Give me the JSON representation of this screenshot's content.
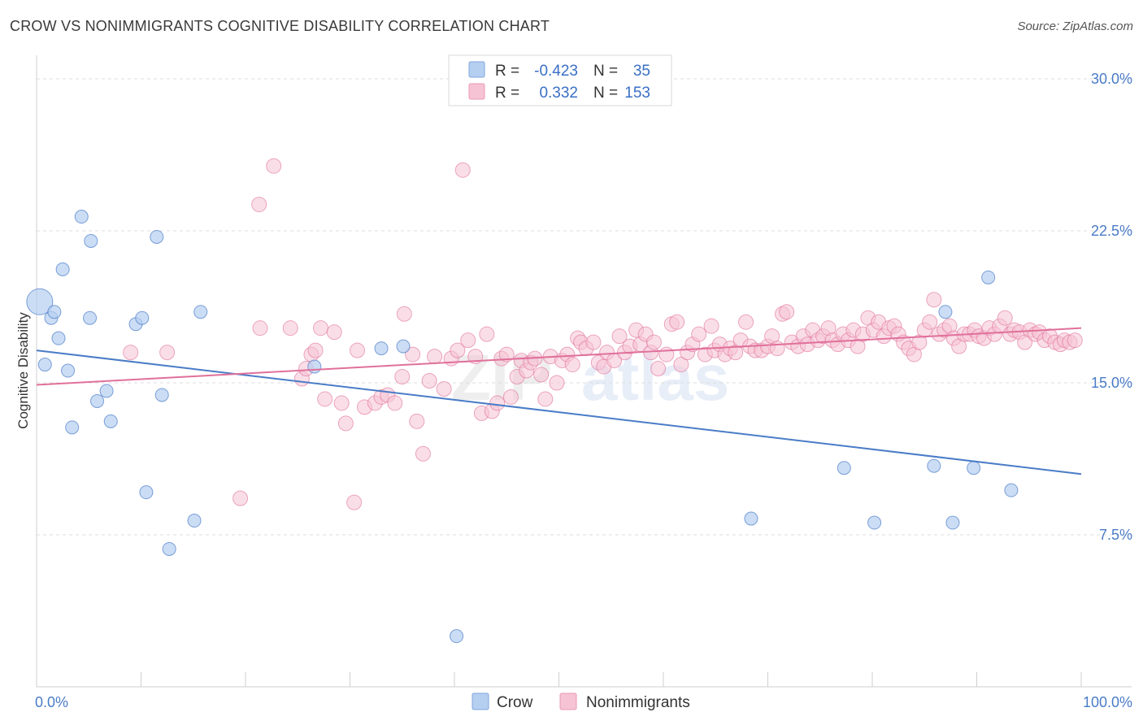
{
  "title": "CROW VS NONIMMIGRANTS COGNITIVE DISABILITY CORRELATION CHART",
  "source": "Source: ZipAtlas.com",
  "watermark": {
    "zip": "ZIP",
    "atlas": "atlas"
  },
  "legend_top": [
    {
      "r_label": "R =",
      "r_value": "-0.423",
      "n_label": "N =",
      "n_value": "35"
    },
    {
      "r_label": "R =",
      "r_value": "0.332",
      "n_label": "N =",
      "n_value": "153"
    }
  ],
  "chart_data": {
    "type": "scatter",
    "title": "CROW VS NONIMMIGRANTS COGNITIVE DISABILITY CORRELATION CHART",
    "xlabel": "",
    "ylabel": "Cognitive Disability",
    "xlim": [
      0,
      100
    ],
    "ylim": [
      0,
      30
    ],
    "x_tick_labels": [
      "0.0%",
      "100.0%"
    ],
    "y_ticks": [
      7.5,
      15.0,
      22.5,
      30.0
    ],
    "y_tick_labels": [
      "7.5%",
      "15.0%",
      "22.5%",
      "30.0%"
    ],
    "grid": true,
    "colors": {
      "crow": "#4a7cc7",
      "crow_fill": "#b5cff1",
      "nonimmigrants": "#e0709a",
      "nonimmigrants_fill": "#f6c3d4"
    },
    "series": [
      {
        "name": "Crow",
        "R": -0.423,
        "N": 35,
        "trend": {
          "x": [
            0,
            100
          ],
          "y": [
            16.6,
            10.5
          ]
        },
        "points": [
          [
            0.3,
            19.0
          ],
          [
            0.8,
            15.9
          ],
          [
            1.4,
            18.2
          ],
          [
            1.7,
            18.5
          ],
          [
            2.1,
            17.2
          ],
          [
            2.5,
            20.6
          ],
          [
            3.0,
            15.6
          ],
          [
            3.4,
            12.8
          ],
          [
            4.3,
            23.2
          ],
          [
            5.1,
            18.2
          ],
          [
            5.2,
            22.0
          ],
          [
            5.8,
            14.1
          ],
          [
            6.7,
            14.6
          ],
          [
            7.1,
            13.1
          ],
          [
            9.5,
            17.9
          ],
          [
            10.1,
            18.2
          ],
          [
            10.5,
            9.6
          ],
          [
            11.5,
            22.2
          ],
          [
            12.0,
            14.4
          ],
          [
            12.7,
            6.8
          ],
          [
            15.1,
            8.2
          ],
          [
            15.7,
            18.5
          ],
          [
            26.6,
            15.8
          ],
          [
            33.0,
            16.7
          ],
          [
            35.1,
            16.8
          ],
          [
            40.2,
            2.5
          ],
          [
            68.4,
            8.3
          ],
          [
            77.3,
            10.8
          ],
          [
            80.2,
            8.1
          ],
          [
            85.9,
            10.9
          ],
          [
            87.0,
            18.5
          ],
          [
            87.7,
            8.1
          ],
          [
            89.7,
            10.8
          ],
          [
            91.1,
            20.2
          ],
          [
            93.3,
            9.7
          ]
        ]
      },
      {
        "name": "Nonimmigrants",
        "R": 0.332,
        "N": 153,
        "trend": {
          "x": [
            0,
            100
          ],
          "y": [
            14.9,
            17.7
          ]
        },
        "points": [
          [
            9.0,
            16.5
          ],
          [
            12.5,
            16.5
          ],
          [
            19.5,
            9.3
          ],
          [
            21.3,
            23.8
          ],
          [
            21.4,
            17.7
          ],
          [
            22.7,
            25.7
          ],
          [
            24.3,
            17.7
          ],
          [
            25.4,
            15.2
          ],
          [
            25.8,
            15.7
          ],
          [
            26.3,
            16.4
          ],
          [
            26.7,
            16.6
          ],
          [
            27.2,
            17.7
          ],
          [
            27.6,
            14.2
          ],
          [
            28.5,
            17.5
          ],
          [
            29.2,
            14.0
          ],
          [
            29.6,
            13.0
          ],
          [
            30.4,
            9.1
          ],
          [
            30.7,
            16.6
          ],
          [
            31.4,
            13.8
          ],
          [
            32.4,
            14.0
          ],
          [
            33.0,
            14.3
          ],
          [
            33.6,
            14.4
          ],
          [
            34.3,
            14.0
          ],
          [
            35.0,
            15.3
          ],
          [
            35.2,
            18.4
          ],
          [
            36.0,
            16.4
          ],
          [
            36.4,
            13.1
          ],
          [
            37.0,
            11.5
          ],
          [
            37.6,
            15.1
          ],
          [
            38.1,
            16.3
          ],
          [
            39.0,
            14.7
          ],
          [
            39.7,
            16.2
          ],
          [
            40.3,
            16.6
          ],
          [
            40.8,
            25.5
          ],
          [
            41.3,
            17.1
          ],
          [
            42.0,
            16.3
          ],
          [
            42.6,
            13.5
          ],
          [
            43.1,
            17.4
          ],
          [
            43.6,
            13.6
          ],
          [
            44.1,
            14.0
          ],
          [
            44.5,
            16.2
          ],
          [
            45.0,
            16.4
          ],
          [
            45.4,
            14.3
          ],
          [
            46.0,
            15.3
          ],
          [
            46.4,
            16.1
          ],
          [
            46.9,
            15.6
          ],
          [
            47.3,
            16.0
          ],
          [
            47.7,
            16.2
          ],
          [
            48.3,
            15.4
          ],
          [
            48.7,
            14.2
          ],
          [
            49.2,
            16.3
          ],
          [
            49.8,
            15.0
          ],
          [
            50.3,
            16.1
          ],
          [
            50.8,
            16.4
          ],
          [
            51.3,
            15.9
          ],
          [
            51.8,
            17.2
          ],
          [
            52.1,
            17.0
          ],
          [
            52.6,
            16.7
          ],
          [
            53.3,
            17.0
          ],
          [
            53.8,
            16.0
          ],
          [
            54.3,
            15.8
          ],
          [
            54.6,
            16.5
          ],
          [
            55.3,
            16.1
          ],
          [
            55.8,
            17.3
          ],
          [
            56.3,
            16.5
          ],
          [
            56.8,
            16.8
          ],
          [
            57.4,
            17.6
          ],
          [
            57.8,
            16.9
          ],
          [
            58.3,
            17.4
          ],
          [
            58.8,
            16.5
          ],
          [
            59.1,
            17.0
          ],
          [
            59.5,
            15.7
          ],
          [
            60.3,
            16.4
          ],
          [
            60.8,
            17.9
          ],
          [
            61.3,
            18.0
          ],
          [
            61.7,
            15.9
          ],
          [
            62.3,
            16.5
          ],
          [
            62.8,
            16.9
          ],
          [
            63.4,
            17.4
          ],
          [
            64.0,
            16.4
          ],
          [
            64.6,
            17.8
          ],
          [
            64.9,
            16.6
          ],
          [
            65.4,
            16.9
          ],
          [
            65.9,
            16.4
          ],
          [
            66.4,
            16.7
          ],
          [
            66.9,
            16.5
          ],
          [
            67.4,
            17.1
          ],
          [
            67.9,
            18.0
          ],
          [
            68.3,
            16.8
          ],
          [
            68.8,
            16.6
          ],
          [
            69.4,
            16.6
          ],
          [
            70.0,
            16.8
          ],
          [
            70.4,
            17.3
          ],
          [
            70.9,
            16.7
          ],
          [
            71.4,
            18.4
          ],
          [
            71.8,
            18.5
          ],
          [
            72.3,
            17.0
          ],
          [
            72.9,
            16.8
          ],
          [
            73.4,
            17.3
          ],
          [
            73.8,
            16.9
          ],
          [
            74.3,
            17.6
          ],
          [
            74.8,
            17.1
          ],
          [
            75.3,
            17.3
          ],
          [
            75.8,
            17.7
          ],
          [
            76.2,
            17.1
          ],
          [
            76.7,
            16.9
          ],
          [
            77.2,
            17.4
          ],
          [
            77.7,
            17.1
          ],
          [
            78.2,
            17.6
          ],
          [
            78.6,
            16.8
          ],
          [
            79.1,
            17.4
          ],
          [
            79.6,
            18.2
          ],
          [
            80.1,
            17.6
          ],
          [
            80.6,
            18.0
          ],
          [
            81.1,
            17.3
          ],
          [
            81.6,
            17.7
          ],
          [
            82.1,
            17.8
          ],
          [
            82.5,
            17.4
          ],
          [
            83.0,
            17.0
          ],
          [
            83.5,
            16.7
          ],
          [
            84.0,
            16.4
          ],
          [
            84.5,
            17.0
          ],
          [
            85.0,
            17.6
          ],
          [
            85.5,
            18.0
          ],
          [
            85.9,
            19.1
          ],
          [
            86.4,
            17.4
          ],
          [
            86.9,
            17.6
          ],
          [
            87.4,
            17.8
          ],
          [
            87.8,
            17.2
          ],
          [
            88.3,
            16.8
          ],
          [
            88.8,
            17.4
          ],
          [
            89.3,
            17.4
          ],
          [
            89.8,
            17.6
          ],
          [
            90.2,
            17.3
          ],
          [
            90.7,
            17.2
          ],
          [
            91.2,
            17.7
          ],
          [
            91.7,
            17.4
          ],
          [
            92.2,
            17.8
          ],
          [
            92.7,
            18.2
          ],
          [
            93.2,
            17.4
          ],
          [
            93.6,
            17.6
          ],
          [
            94.1,
            17.5
          ],
          [
            94.6,
            17.0
          ],
          [
            95.1,
            17.6
          ],
          [
            95.6,
            17.4
          ],
          [
            96.0,
            17.5
          ],
          [
            96.5,
            17.1
          ],
          [
            97.0,
            17.3
          ],
          [
            97.5,
            17.0
          ],
          [
            98.0,
            16.9
          ],
          [
            98.4,
            17.1
          ],
          [
            98.9,
            17.0
          ],
          [
            99.4,
            17.1
          ]
        ]
      }
    ],
    "legend": [
      "Crow",
      "Nonimmigrants"
    ]
  }
}
